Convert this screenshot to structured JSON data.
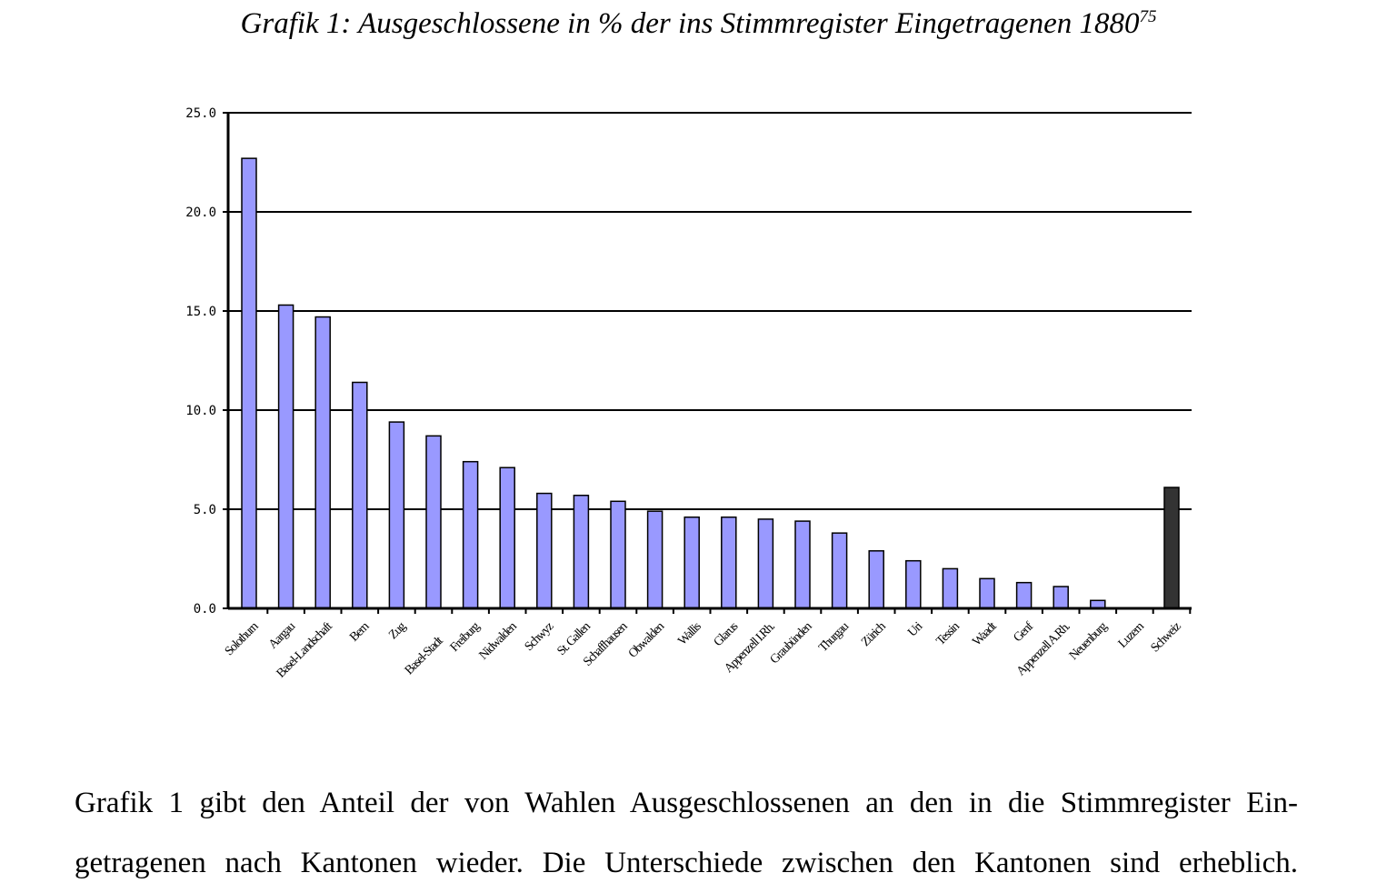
{
  "chart_data": {
    "type": "bar",
    "title": "Grafik 1: Ausgeschlossene in % der ins Stimmregister Eingetragenen 1880",
    "title_footnote": "75",
    "xlabel": "",
    "ylabel": "",
    "ylim": [
      0,
      25
    ],
    "yticks": [
      "0.0",
      "5.0",
      "10.0",
      "15.0",
      "20.0",
      "25.0"
    ],
    "grid": true,
    "legend": "none",
    "categories": [
      "Solothurn",
      "Aargau",
      "Basel-Landschaft",
      "Bern",
      "Zug",
      "Basel-Stadt",
      "Freiburg",
      "Nidwalden",
      "Schwyz",
      "St. Gallen",
      "Schaffhausen",
      "Obwalden",
      "Wallis",
      "Glarus",
      "Appenzell I.Rh.",
      "Graubünden",
      "Thurgau",
      "Zürich",
      "Uri",
      "Tessin",
      "Waadt",
      "Genf",
      "Appenzell A.Rh.",
      "Neuenburg",
      "Luzern",
      "Schweiz"
    ],
    "values": [
      22.7,
      15.3,
      14.7,
      11.4,
      9.4,
      8.7,
      7.4,
      7.1,
      5.8,
      5.7,
      5.4,
      4.9,
      4.6,
      4.6,
      4.5,
      4.4,
      3.8,
      2.9,
      2.4,
      2.0,
      1.5,
      1.3,
      1.1,
      0.4,
      0.0,
      6.1
    ],
    "colors": {
      "bar": "#9999ff",
      "total": "#333333",
      "outline": "#000000"
    }
  },
  "paragraph": {
    "line1": "Grafik 1 gibt den Anteil der von Wahlen Ausgeschlossenen an den in die Stimmregister Ein-",
    "line2": "getragenen nach Kantonen wieder. Die Unterschiede zwischen den Kantonen sind erheblich."
  }
}
